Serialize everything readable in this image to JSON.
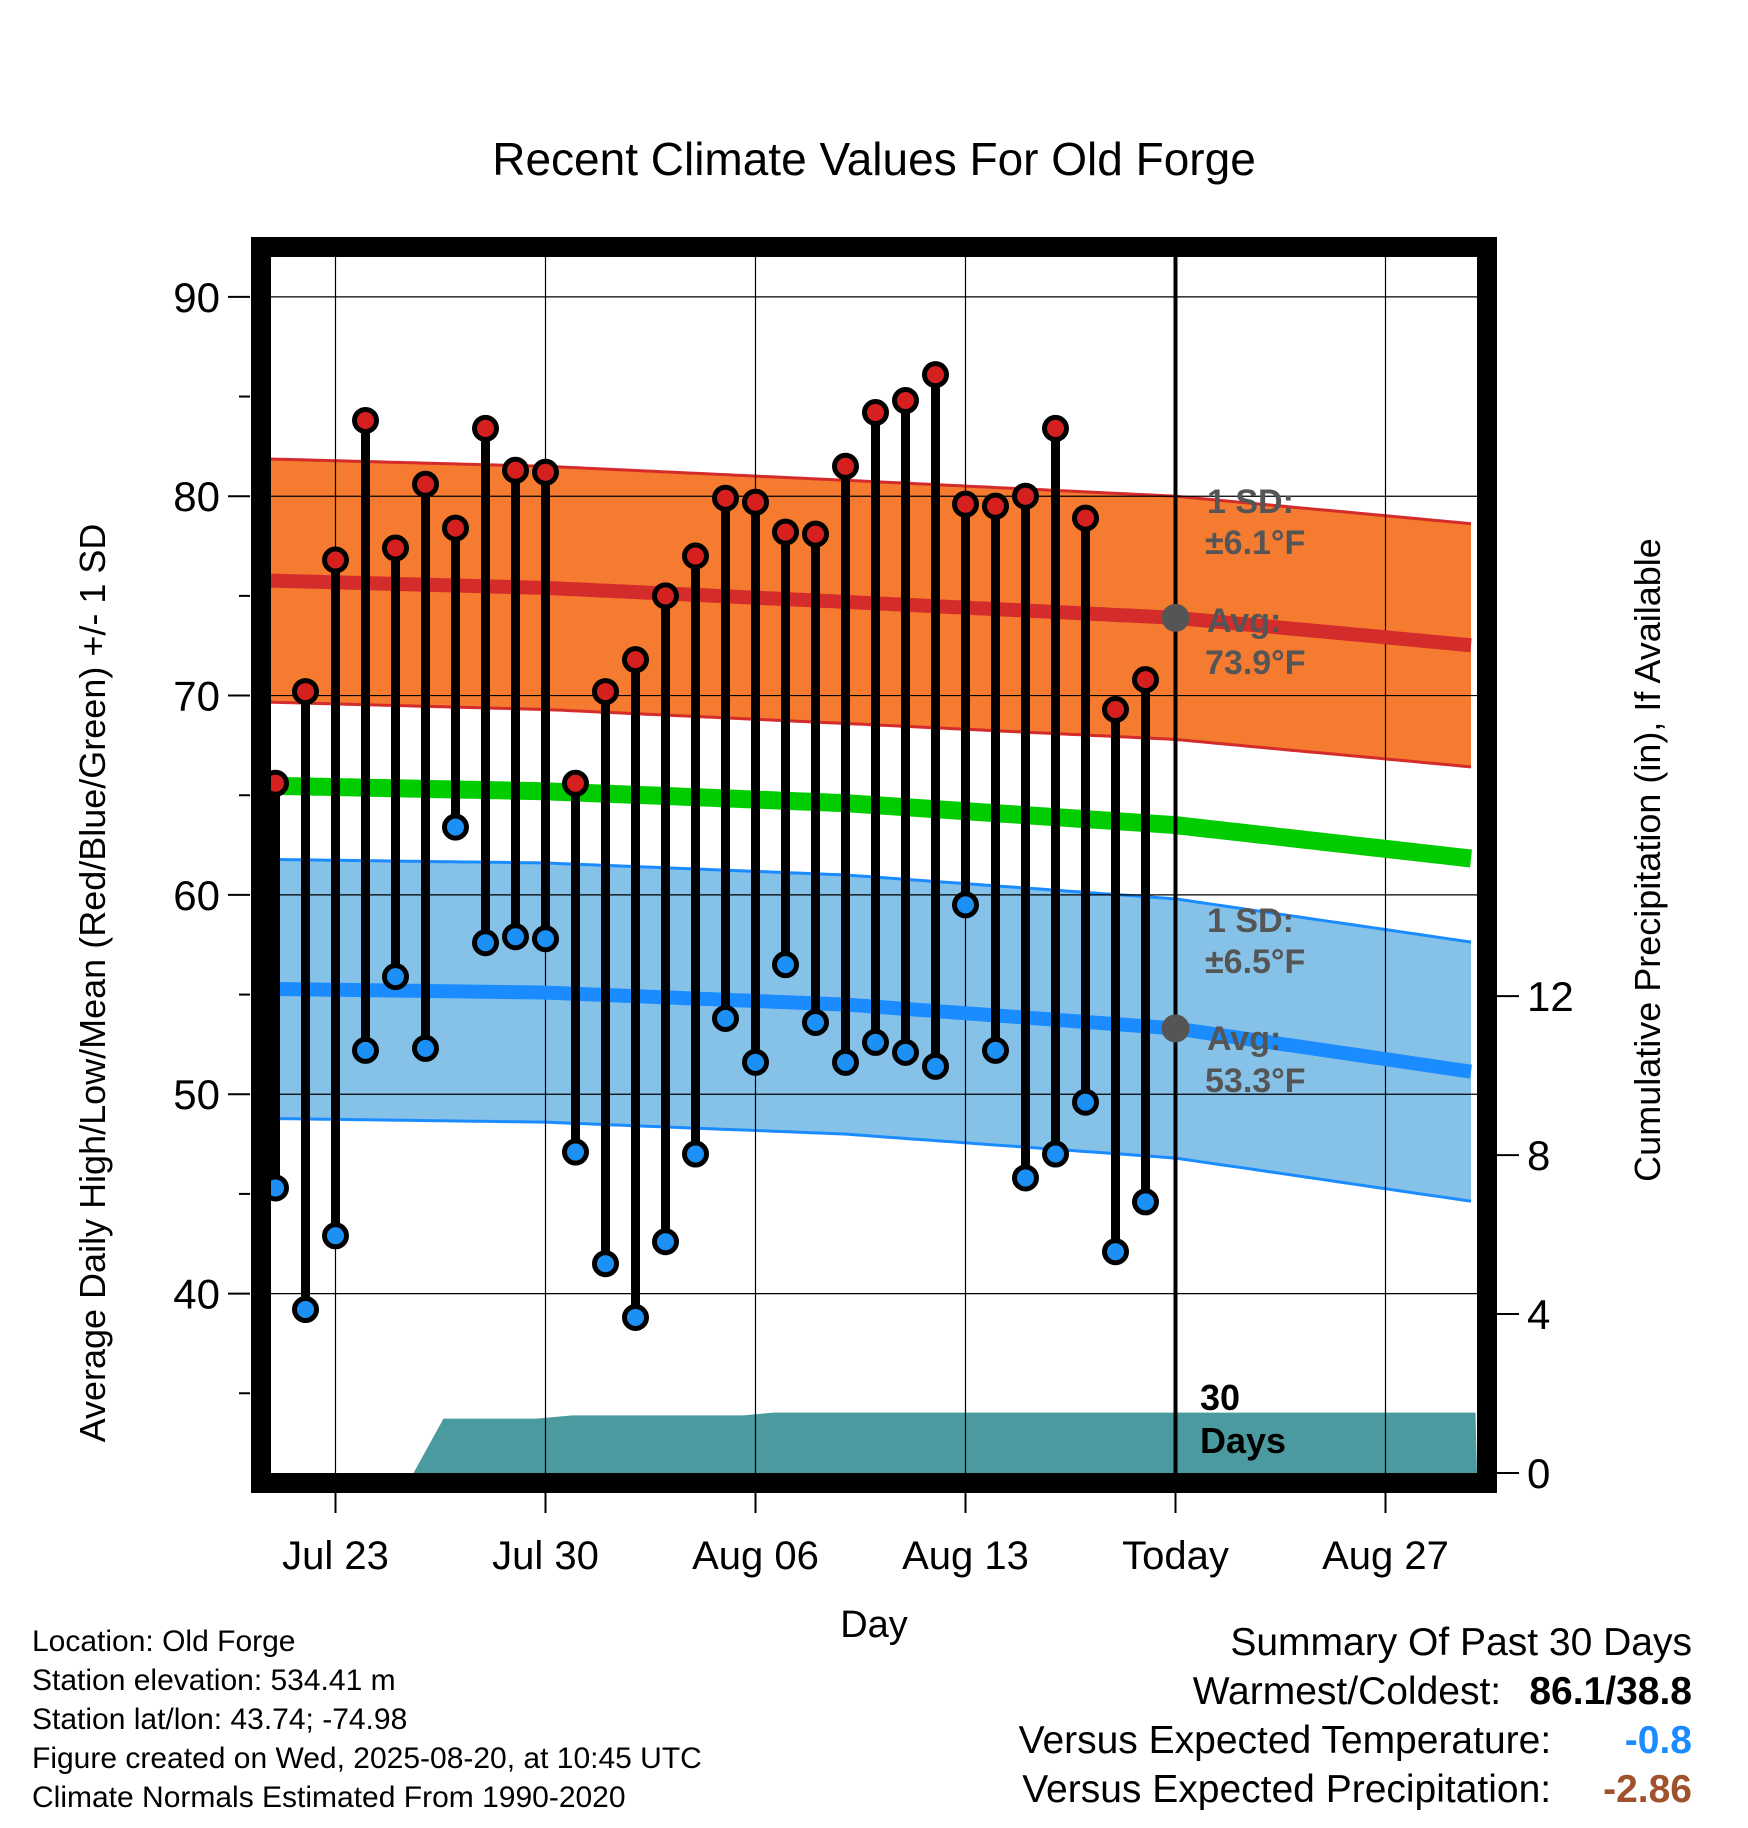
{
  "chart_data": {
    "type": "line",
    "title": "Recent Climate Values For Old Forge",
    "xlabel": "Day",
    "ylabel": "Average Daily High/Low/Mean (Red/Blue/Green) +/- 1 SD",
    "ylabel_right": "Cumulative Precipitation (in), If Available",
    "x_ticks": [
      "Jul 23",
      "Jul 30",
      "Aug 06",
      "Aug 13",
      "Today",
      "Aug 27"
    ],
    "x_tick_days": [
      3,
      10,
      17,
      24,
      31,
      38
    ],
    "x_range_days": [
      0,
      41
    ],
    "ylim": [
      31,
      92
    ],
    "y_ticks": [
      40,
      50,
      60,
      70,
      80,
      90
    ],
    "y2lim": [
      0,
      30.6
    ],
    "y2_ticks": [
      0,
      4,
      8,
      12
    ],
    "grid": true,
    "today_day": 31,
    "days": [
      {
        "high": 65.6,
        "low": 45.3
      },
      {
        "high": 70.2,
        "low": 39.2
      },
      {
        "high": 76.8,
        "low": 42.9
      },
      {
        "high": 83.8,
        "low": 52.2
      },
      {
        "high": 77.4,
        "low": 55.9
      },
      {
        "high": 80.6,
        "low": 52.3
      },
      {
        "high": 78.4,
        "low": 63.4
      },
      {
        "high": 83.4,
        "low": 57.6
      },
      {
        "high": 81.3,
        "low": 57.9
      },
      {
        "high": 81.2,
        "low": 57.8
      },
      {
        "high": 65.6,
        "low": 47.1
      },
      {
        "high": 70.2,
        "low": 41.5
      },
      {
        "high": 71.8,
        "low": 38.8
      },
      {
        "high": 75.0,
        "low": 42.6
      },
      {
        "high": 77.0,
        "low": 47.0
      },
      {
        "high": 79.9,
        "low": 53.8
      },
      {
        "high": 79.7,
        "low": 51.6
      },
      {
        "high": 78.2,
        "low": 56.5
      },
      {
        "high": 78.1,
        "low": 53.6
      },
      {
        "high": 81.5,
        "low": 51.6
      },
      {
        "high": 84.2,
        "low": 52.6
      },
      {
        "high": 84.8,
        "low": 52.1
      },
      {
        "high": 86.1,
        "low": 51.4
      },
      {
        "high": 79.6,
        "low": 59.5
      },
      {
        "high": 79.5,
        "low": 52.2
      },
      {
        "high": 80.0,
        "low": 45.8
      },
      {
        "high": 83.4,
        "low": 47.0
      },
      {
        "high": 78.9,
        "low": 49.6
      },
      {
        "high": 69.3,
        "low": 42.1
      },
      {
        "high": 70.8,
        "low": 44.6
      }
    ],
    "normals": {
      "high_avg": [
        [
          0,
          75.8
        ],
        [
          10,
          75.4
        ],
        [
          20,
          74.7
        ],
        [
          31,
          73.9
        ],
        [
          41,
          72.5
        ]
      ],
      "high_sd": 6.1,
      "low_avg": [
        [
          0,
          55.3
        ],
        [
          10,
          55.1
        ],
        [
          20,
          54.5
        ],
        [
          31,
          53.3
        ],
        [
          41,
          51.1
        ]
      ],
      "low_sd": 6.5,
      "mean": [
        [
          0,
          65.5
        ],
        [
          10,
          65.2
        ],
        [
          20,
          64.6
        ],
        [
          31,
          63.5
        ],
        [
          41,
          61.8
        ]
      ]
    },
    "precip_cumulative": [
      [
        5.6,
        0.0
      ],
      [
        6.6,
        1.37
      ],
      [
        9.7,
        1.37
      ],
      [
        10.9,
        1.45
      ],
      [
        16.6,
        1.45
      ],
      [
        17.6,
        1.52
      ],
      [
        41,
        1.52
      ]
    ],
    "annotations": {
      "high_sd_label": "1 SD:",
      "high_sd_value": "±6.1°F",
      "high_avg_label": "Avg:",
      "high_avg_value": "73.9°F",
      "low_sd_label": "1 SD:",
      "low_sd_value": "±6.5°F",
      "low_avg_label": "Avg:",
      "low_avg_value": "53.3°F",
      "days_count": "30",
      "days_word": "Days"
    },
    "colors": {
      "high_band": "#f57b30",
      "high_line": "#d42b2b",
      "low_band": "#86c1e8",
      "low_line": "#1a8cff",
      "mean_line": "#00cc00",
      "precip": "#4a9aa0",
      "high_dot": "#d62020",
      "low_dot": "#1c90f5",
      "avg_dot": "#555555"
    }
  },
  "info": {
    "location": "Location: Old Forge",
    "elevation": "Station elevation: 534.41 m",
    "latlon": "Station lat/lon: 43.74; -74.98",
    "created": "Figure created on Wed, 2025-08-20, at 10:45 UTC",
    "normals": "Climate Normals Estimated From 1990-2020"
  },
  "summary": {
    "title": "Summary Of Past 30 Days",
    "warm_cold_label": "Warmest/Coldest:",
    "warm_cold_value": "86.1/38.8",
    "temp_label": "Versus Expected Temperature:",
    "temp_value": "-0.8",
    "temp_color": "#1a8cff",
    "precip_label": "Versus Expected Precipitation:",
    "precip_value": "-2.86",
    "precip_color": "#a0522d"
  }
}
